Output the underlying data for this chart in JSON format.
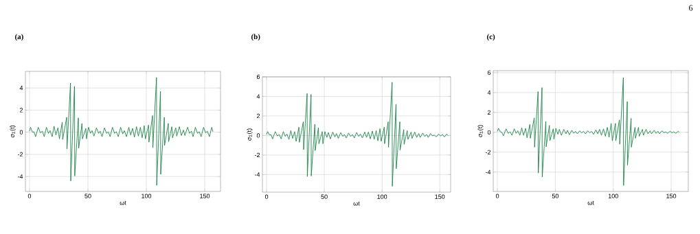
{
  "chart_data": [
    {
      "type": "line",
      "title": "(a)",
      "xlabel": "ωt",
      "ylabel": "σ$_{Σ}$(t)",
      "color": "#1e8449",
      "grid": true,
      "xlim": [
        -3.5,
        163.5
      ],
      "ylim": [
        -5.35,
        5.5
      ],
      "xticks": [
        0,
        50,
        100,
        150
      ],
      "yticks": [
        -4,
        -2,
        0,
        2,
        4
      ],
      "x": [
        0,
        0.9,
        2.5,
        3.8,
        5.2,
        7.5,
        9.3,
        11,
        12.6,
        14.5,
        16.2,
        17.6,
        19.4,
        21,
        22.6,
        24.3,
        25.6,
        28.0,
        28.4,
        31.8,
        32.1,
        35.1,
        35.3,
        38.5,
        38.7,
        41.8,
        42.1,
        44.9,
        45.3,
        48.2,
        48.8,
        50.5,
        52.2,
        53.5,
        55.2,
        57.3,
        59.2,
        60.5,
        62.1,
        64.2,
        66,
        67.4,
        69,
        71,
        72.8,
        74.3,
        76,
        78,
        79.8,
        81.2,
        83,
        85,
        86.6,
        88.2,
        89.8,
        91.6,
        93.2,
        94.9,
        96.4,
        98.2,
        99.2,
        101.9,
        102.2,
        105.3,
        105.6,
        108.7,
        108.9,
        112.1,
        112.3,
        115.4,
        115.6,
        118.8,
        119.1,
        121.8,
        122.4,
        125.2,
        126,
        128.3,
        130,
        131.8,
        133,
        135.3,
        137,
        138.6,
        140,
        142,
        143.8,
        145.3,
        146.9,
        149,
        150.8,
        152.2,
        154,
        156,
        157
      ],
      "values": [
        0.1,
        0.45,
        0.0,
        0.05,
        -0.4,
        0.45,
        -0.05,
        0.1,
        -0.4,
        0.45,
        -0.1,
        0.15,
        -0.4,
        0.55,
        -0.25,
        0.4,
        -0.6,
        0.9,
        -0.65,
        1.35,
        -1.5,
        4.45,
        -4.4,
        4.15,
        -3.95,
        1.3,
        -1.45,
        0.8,
        -0.6,
        0.35,
        -0.6,
        0.45,
        -0.1,
        0.15,
        -0.35,
        0.4,
        -0.1,
        0.1,
        -0.4,
        0.4,
        -0.1,
        0.05,
        -0.4,
        0.45,
        -0.1,
        0.05,
        -0.4,
        0.45,
        -0.15,
        0.15,
        -0.4,
        0.45,
        -0.25,
        0.35,
        -0.45,
        0.5,
        -0.35,
        0.45,
        -0.5,
        0.6,
        -0.6,
        0.65,
        -0.9,
        1.5,
        -1.4,
        4.95,
        -4.8,
        3.7,
        -3.8,
        1.35,
        -1.2,
        0.8,
        -0.85,
        0.5,
        -0.5,
        0.4,
        -0.35,
        0.5,
        -0.3,
        0.2,
        -0.3,
        0.45,
        -0.1,
        0.1,
        -0.4,
        0.45,
        -0.1,
        0.05,
        -0.4,
        0.45,
        -0.05,
        0.1,
        -0.4,
        0.45,
        0.05
      ]
    },
    {
      "type": "line",
      "title": "(b)",
      "xlabel": "ωt",
      "ylabel": "σ$_{Σ}$(t)",
      "color": "#1e8449",
      "grid": true,
      "xlim": [
        -3.6,
        159.4
      ],
      "ylim": [
        -5.8,
        6
      ],
      "xticks": [
        0,
        50,
        100,
        150
      ],
      "yticks": [
        -4,
        -2,
        0,
        2,
        4,
        6
      ],
      "x": [
        0,
        0.9,
        2.5,
        3.8,
        5.2,
        7.5,
        9.3,
        11,
        12.6,
        14.5,
        16.2,
        17.6,
        19.4,
        21,
        22.6,
        24.3,
        25.6,
        28.0,
        28.4,
        31.8,
        32.1,
        35.1,
        35.3,
        38.5,
        38.7,
        41.8,
        42.1,
        44.9,
        45.3,
        48.2,
        48.8,
        50.5,
        52.2,
        53.5,
        55.2,
        57.3,
        59.2,
        60.5,
        62.1,
        64.2,
        66,
        67.4,
        69,
        71,
        72.8,
        74.3,
        76,
        78,
        79.8,
        81.2,
        83,
        85,
        86.6,
        88.2,
        89.8,
        91.6,
        93.2,
        94.9,
        96.4,
        98.2,
        99.2,
        101.9,
        102.2,
        105.3,
        105.6,
        108.7,
        108.9,
        112.1,
        112.3,
        115.4,
        115.6,
        118.8,
        119.1,
        121.8,
        122.4,
        125.2,
        126,
        128.3,
        130,
        131.8,
        133,
        135.3,
        137,
        138.6,
        140,
        142,
        143.8,
        145.3,
        146.9,
        149,
        150.8,
        152.2,
        154,
        156,
        157
      ],
      "values": [
        0.1,
        0.4,
        0.05,
        0.1,
        -0.35,
        0.4,
        -0.05,
        0.1,
        -0.35,
        0.4,
        -0.1,
        0.15,
        -0.4,
        0.5,
        -0.3,
        0.4,
        -0.6,
        0.85,
        -0.7,
        1.4,
        -1.45,
        4.3,
        -4.2,
        4.2,
        -4.15,
        1.15,
        -1.55,
        0.8,
        -0.85,
        0.4,
        -0.85,
        0.4,
        -0.2,
        0.3,
        -0.35,
        0.35,
        -0.15,
        0.2,
        -0.3,
        0.3,
        -0.1,
        0.1,
        -0.25,
        0.25,
        -0.1,
        0.1,
        -0.25,
        0.3,
        -0.1,
        0.15,
        -0.25,
        0.35,
        -0.2,
        0.35,
        -0.35,
        0.45,
        -0.4,
        0.5,
        -0.55,
        0.7,
        -0.6,
        0.85,
        -0.85,
        1.4,
        -1.2,
        5.45,
        -5.2,
        3.2,
        -3.4,
        1.4,
        -1.5,
        0.6,
        -0.9,
        0.5,
        -0.4,
        0.35,
        -0.3,
        0.35,
        -0.2,
        0.2,
        -0.2,
        0.25,
        -0.1,
        0.1,
        -0.2,
        0.2,
        -0.05,
        0.05,
        -0.15,
        0.15,
        -0.05,
        0.1,
        -0.15,
        0.15,
        0.0
      ]
    },
    {
      "type": "line",
      "title": "(c)",
      "xlabel": "ωt",
      "ylabel": "σ$_{Σ}$(t)",
      "color": "#1e8449",
      "grid": true,
      "xlim": [
        -3.6,
        164.8
      ],
      "ylim": [
        -5.95,
        6.2
      ],
      "xticks": [
        0,
        50,
        100,
        150
      ],
      "yticks": [
        -4,
        -2,
        0,
        2,
        4,
        6
      ],
      "annotations": [
        "6"
      ],
      "x": [
        0,
        0.9,
        2.5,
        3.8,
        5.2,
        7.5,
        9.3,
        11,
        12.6,
        14.5,
        16.2,
        17.6,
        19.4,
        21,
        22.6,
        24.3,
        25.6,
        28.0,
        28.4,
        31.8,
        32.1,
        35.1,
        35.3,
        38.5,
        38.7,
        41.8,
        42.1,
        44.9,
        45.3,
        48.2,
        48.8,
        50.5,
        52.2,
        53.5,
        55.2,
        57.3,
        59.2,
        60.5,
        62.1,
        64.2,
        66,
        67.4,
        69,
        71,
        72.8,
        74.3,
        76,
        78,
        79.8,
        81.2,
        83,
        85,
        86.6,
        88.2,
        89.8,
        91.6,
        93.2,
        94.9,
        96.4,
        98.2,
        99.2,
        101.9,
        102.2,
        105.3,
        105.6,
        108.7,
        108.9,
        112.1,
        112.3,
        115.4,
        115.6,
        118.8,
        119.1,
        121.8,
        122.4,
        125.2,
        126,
        128.3,
        130,
        131.8,
        133,
        135.3,
        137,
        138.6,
        140,
        142,
        143.8,
        145.3,
        146.9,
        149,
        150.8,
        152.2,
        154,
        156,
        157
      ],
      "values": [
        0.1,
        0.4,
        0.05,
        0.0,
        -0.35,
        0.35,
        -0.1,
        0.05,
        -0.3,
        0.35,
        -0.1,
        0.15,
        -0.3,
        0.45,
        -0.3,
        0.4,
        -0.55,
        0.8,
        -0.6,
        1.45,
        -1.5,
        4.1,
        -4.1,
        4.5,
        -4.5,
        1.1,
        -1.45,
        0.7,
        -0.85,
        0.35,
        -0.7,
        0.4,
        -0.2,
        0.3,
        -0.3,
        0.3,
        -0.15,
        0.2,
        -0.25,
        0.2,
        -0.1,
        0.1,
        -0.15,
        0.15,
        -0.05,
        0.1,
        -0.15,
        0.15,
        -0.05,
        0.1,
        -0.2,
        0.25,
        -0.15,
        0.3,
        -0.3,
        0.35,
        -0.4,
        0.5,
        -0.5,
        0.9,
        -0.85,
        0.9,
        -0.85,
        1.25,
        -1.2,
        5.5,
        -5.35,
        3.1,
        -3.3,
        1.4,
        -1.5,
        0.5,
        -0.6,
        0.5,
        -0.4,
        0.3,
        -0.3,
        0.3,
        -0.15,
        0.15,
        -0.15,
        0.2,
        -0.1,
        0.1,
        -0.15,
        0.15,
        -0.05,
        0.05,
        -0.1,
        0.1,
        -0.05,
        0.05,
        -0.1,
        0.1,
        0.0
      ]
    }
  ]
}
